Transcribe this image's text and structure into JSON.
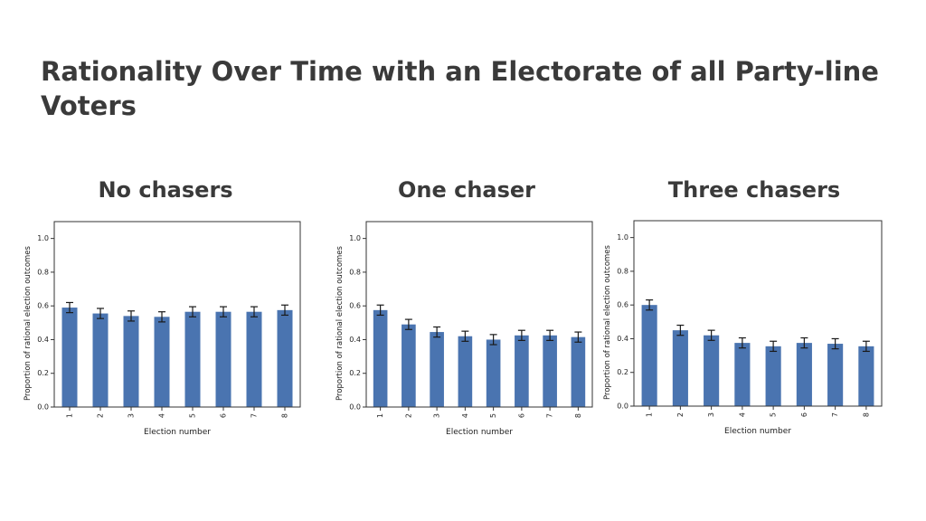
{
  "slide": {
    "title": "Rationality Over Time with an Electorate of all Party-line Voters"
  },
  "colors": {
    "bar": "#4a74b0",
    "error_bar": "#1a1a1a",
    "axis": "#333333",
    "title_text": "#3a3a3a"
  },
  "chart_data": [
    {
      "type": "bar",
      "title": "No chasers",
      "xlabel": "Election number",
      "ylabel": "Proportion of rational election outcomes",
      "categories": [
        "1",
        "2",
        "3",
        "4",
        "5",
        "6",
        "7",
        "8"
      ],
      "values": [
        0.59,
        0.555,
        0.54,
        0.535,
        0.565,
        0.565,
        0.565,
        0.575
      ],
      "errors": [
        0.03,
        0.03,
        0.03,
        0.03,
        0.03,
        0.03,
        0.03,
        0.03
      ],
      "ylim": [
        0,
        1.1
      ],
      "yticks": [
        0.0,
        0.2,
        0.4,
        0.6,
        0.8,
        1.0
      ],
      "ytick_labels": [
        "0.0",
        "0.2",
        "0.4",
        "0.6",
        "0.8",
        "1.0"
      ],
      "grid": false,
      "legend": "none"
    },
    {
      "type": "bar",
      "title": "One chaser",
      "xlabel": "Election number",
      "ylabel": "Proportion of rational election outcomes",
      "categories": [
        "1",
        "2",
        "3",
        "4",
        "5",
        "6",
        "7",
        "8"
      ],
      "values": [
        0.575,
        0.49,
        0.445,
        0.42,
        0.4,
        0.425,
        0.425,
        0.415
      ],
      "errors": [
        0.03,
        0.03,
        0.03,
        0.03,
        0.03,
        0.03,
        0.03,
        0.03
      ],
      "ylim": [
        0,
        1.1
      ],
      "yticks": [
        0.0,
        0.2,
        0.4,
        0.6,
        0.8,
        1.0
      ],
      "ytick_labels": [
        "0.0",
        "0.2",
        "0.4",
        "0.6",
        "0.8",
        "1.0"
      ],
      "grid": false,
      "legend": "none"
    },
    {
      "type": "bar",
      "title": "Three chasers",
      "xlabel": "Election number",
      "ylabel": "Proportion of rational election outcomes",
      "categories": [
        "1",
        "2",
        "3",
        "4",
        "5",
        "6",
        "7",
        "8"
      ],
      "values": [
        0.6,
        0.45,
        0.42,
        0.375,
        0.355,
        0.375,
        0.37,
        0.355
      ],
      "errors": [
        0.03,
        0.03,
        0.03,
        0.03,
        0.03,
        0.03,
        0.03,
        0.03
      ],
      "ylim": [
        0,
        1.1
      ],
      "yticks": [
        0.0,
        0.2,
        0.4,
        0.6,
        0.8,
        1.0
      ],
      "ytick_labels": [
        "0.0",
        "0.2",
        "0.4",
        "0.6",
        "0.8",
        "1.0"
      ],
      "grid": false,
      "legend": "none"
    }
  ]
}
